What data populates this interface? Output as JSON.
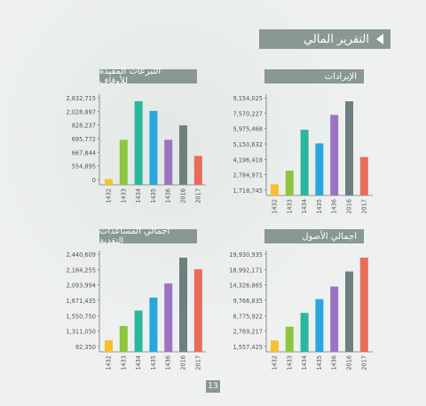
{
  "page": {
    "title": "التقرير المالي",
    "page_number": "13"
  },
  "colors": [
    "#f6c12e",
    "#8dc63f",
    "#2bb69e",
    "#29a6df",
    "#9b73c2",
    "#6e7f80",
    "#e96b5a"
  ],
  "chart_data": [
    {
      "type": "bar",
      "title": "التبرعات المفيدة للأوقاف",
      "categories": [
        "1432",
        "1433",
        "1434",
        "1435",
        "1436",
        "2016",
        "2017"
      ],
      "ticks": [
        "2,832,715",
        "2,028,897",
        "828,237",
        "695,772",
        "667,844",
        "554,895",
        "0"
      ],
      "values": [
        0.18,
        1.4,
        2.6,
        2.3,
        1.4,
        1.85,
        0.9
      ],
      "ylim": [
        0,
        2.6
      ]
    },
    {
      "type": "bar",
      "title": "الإيرادات",
      "categories": [
        "1432",
        "1433",
        "1434",
        "1435",
        "1436",
        "2016",
        "2017"
      ],
      "ticks": [
        "9,154,025",
        "7,570,227",
        "5,975,468",
        "5,150,632",
        "4,196,418",
        "2,784,971",
        "1,718,745"
      ],
      "values": [
        0.45,
        1.0,
        2.65,
        2.1,
        3.25,
        3.8,
        1.55
      ],
      "ylim": [
        0,
        3.8
      ]
    },
    {
      "type": "bar",
      "title": "اجمالي المساعدات النقدية",
      "categories": [
        "1432",
        "1433",
        "1434",
        "1435",
        "1436",
        "2016",
        "2017"
      ],
      "ticks": [
        "2,440,609",
        "2,184,255",
        "2,093,994",
        "1,671,435",
        "1,550,750",
        "1,311,050",
        "92,350"
      ],
      "values": [
        0.45,
        1.0,
        1.6,
        2.1,
        2.65,
        3.65,
        3.2
      ],
      "ylim": [
        0,
        3.65
      ]
    },
    {
      "type": "bar",
      "title": "اجمالي الأصول",
      "categories": [
        "1432",
        "1433",
        "1434",
        "1435",
        "1436",
        "2016",
        "2017"
      ],
      "ticks": [
        "19,930,935",
        "18,992,171",
        "14,326,865",
        "9,766,835",
        "6,775,922",
        "2,769,217",
        "1,557,425"
      ],
      "values": [
        0.45,
        1.0,
        1.55,
        2.1,
        2.6,
        3.2,
        3.75
      ],
      "ylim": [
        0,
        3.75
      ]
    }
  ]
}
